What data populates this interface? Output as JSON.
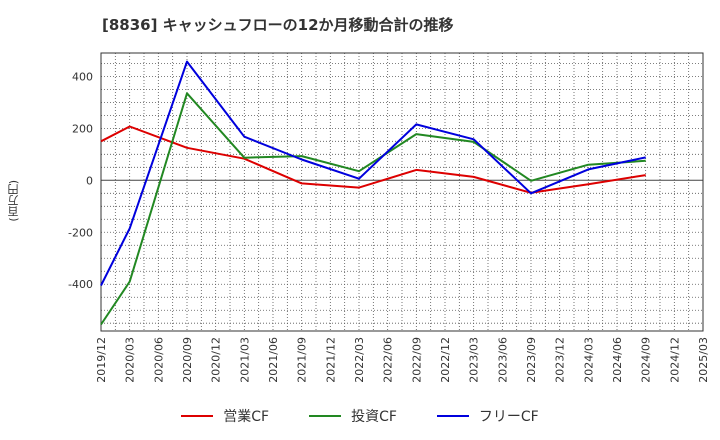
{
  "chart_data": {
    "type": "line",
    "title": "[8836]  キャッシュフローの12か月移動合計の推移",
    "ylabel": "(百万円)",
    "xlabel": "",
    "ylim": [
      -580,
      490
    ],
    "yticks": [
      400,
      200,
      0,
      -200,
      -400
    ],
    "x": [
      "2019/12",
      "2020/03",
      "2020/06",
      "2020/09",
      "2020/12",
      "2021/03",
      "2021/06",
      "2021/09",
      "2021/12",
      "2022/03",
      "2022/06",
      "2022/09",
      "2022/12",
      "2023/03",
      "2023/06",
      "2023/09",
      "2023/12",
      "2024/03",
      "2024/06",
      "2024/09",
      "2024/12",
      "2025/03"
    ],
    "grid": true,
    "legend_position": "bottom",
    "series": [
      {
        "name": "営業CF",
        "color": "#dd0000",
        "x": [
          "2019/12",
          "2020/03",
          "2020/09",
          "2021/03",
          "2021/09",
          "2022/03",
          "2022/09",
          "2023/03",
          "2023/09",
          "2024/03",
          "2024/09"
        ],
        "values": [
          150,
          207,
          125,
          83,
          -12,
          -28,
          40,
          13,
          -48,
          -15,
          20
        ]
      },
      {
        "name": "投資CF",
        "color": "#228822",
        "x": [
          "2019/12",
          "2020/03",
          "2020/09",
          "2021/03",
          "2021/09",
          "2022/03",
          "2022/09",
          "2023/03",
          "2023/09",
          "2024/03",
          "2024/09"
        ],
        "values": [
          -555,
          -390,
          335,
          87,
          93,
          35,
          178,
          148,
          -2,
          60,
          75
        ]
      },
      {
        "name": "フリーCF",
        "color": "#0000dd",
        "x": [
          "2019/12",
          "2020/03",
          "2020/09",
          "2021/03",
          "2021/09",
          "2022/03",
          "2022/09",
          "2023/03",
          "2023/09",
          "2024/03",
          "2024/09"
        ],
        "values": [
          -405,
          -185,
          457,
          168,
          80,
          6,
          215,
          158,
          -50,
          42,
          88
        ]
      }
    ]
  }
}
